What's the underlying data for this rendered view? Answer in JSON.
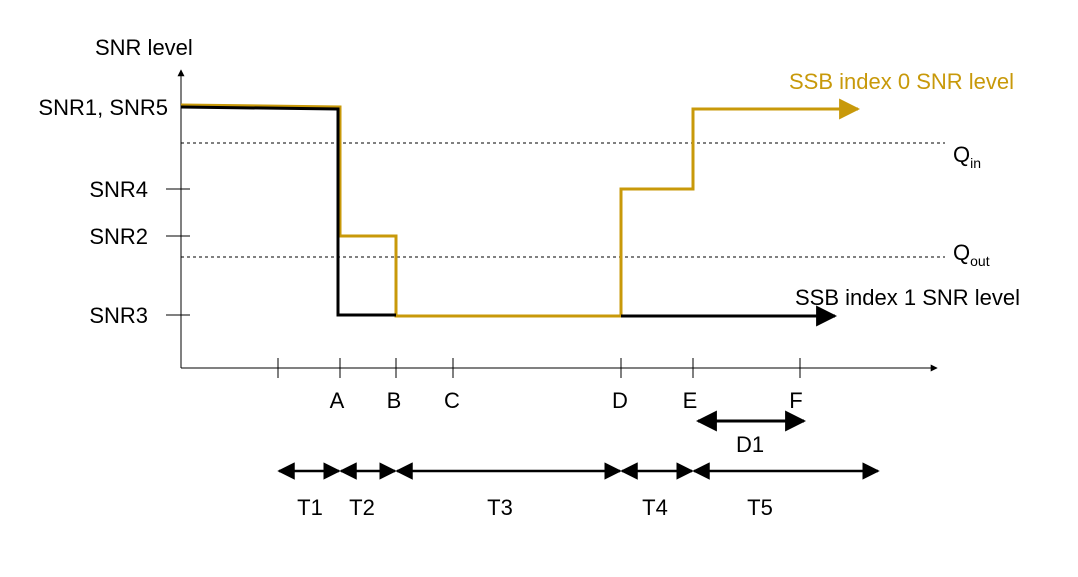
{
  "y_axis_title": "SNR level",
  "y_levels": [
    "SNR1, SNR5",
    "SNR4",
    "SNR2",
    "SNR3"
  ],
  "thresholds": [
    {
      "main": "Q",
      "sub": "in"
    },
    {
      "main": "Q",
      "sub": "out"
    }
  ],
  "x_points": [
    "A",
    "B",
    "C",
    "D",
    "E",
    "F"
  ],
  "series": [
    {
      "name": "SSB index 0 SNR level",
      "color": "#c8990a"
    },
    {
      "name": "SSB index 1 SNR level",
      "color": "#000000"
    }
  ],
  "durations": [
    "D1"
  ],
  "intervals": [
    "T1",
    "T2",
    "T3",
    "T4",
    "T5"
  ]
}
